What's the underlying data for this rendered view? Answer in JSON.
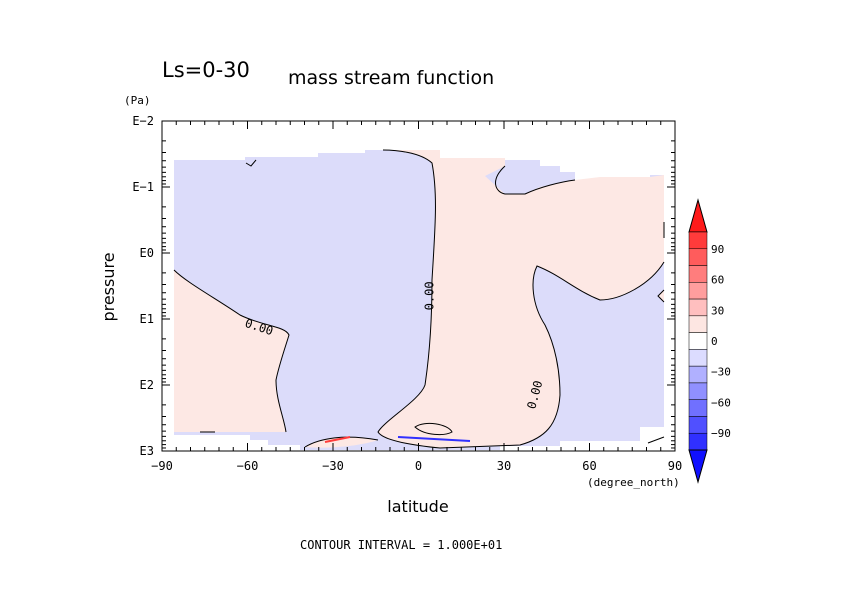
{
  "chart_data": {
    "type": "heatmap",
    "title": "Ls=0-30",
    "subtitle": "mass stream function",
    "xlabel": "latitude",
    "xunit": "(degree_north)",
    "ylabel": "pressure",
    "yunit": "(Pa)",
    "x_ticks": [
      "−90",
      "−60",
      "−30",
      "0",
      "30",
      "60",
      "90"
    ],
    "x_tick_values": [
      -90,
      -60,
      -30,
      0,
      30,
      60,
      90
    ],
    "y_ticks": [
      "E−2",
      "E−1",
      "E0",
      "E1",
      "E2",
      "E3"
    ],
    "y_tick_exponents": [
      -2,
      -1,
      0,
      1,
      2,
      3
    ],
    "xlim": [
      -90,
      90
    ],
    "ylim_log10_pa": [
      -2,
      3
    ],
    "y_scale": "log",
    "y_inverted": true,
    "contour_labels": [
      {
        "text": "0.00",
        "lat": -56,
        "log10_p": 1.13
      },
      {
        "text": "0.00",
        "lat": 4,
        "log10_p": 0.65
      },
      {
        "text": "0.00",
        "lat": 41,
        "log10_p": 2.15
      }
    ],
    "colorbar": {
      "labels": [
        "90",
        "60",
        "30",
        "0",
        "−30",
        "−60",
        "−90"
      ],
      "levels": [
        90,
        60,
        30,
        0,
        -30,
        -60,
        -90
      ],
      "colors": [
        "#ff1a1a",
        "#ff3b3b",
        "#ff5c5c",
        "#ff7d7d",
        "#ff9e9e",
        "#ffbfbf",
        "#fde6e2",
        "#ffffff",
        "#dcdcff",
        "#b0b0ff",
        "#9090ff",
        "#7070ff",
        "#5050ff",
        "#3030ff",
        "#1010ff"
      ],
      "positive_color": "#fde8e4",
      "negative_color": "#dcdcfa"
    },
    "footer": "CONTOUR INTERVAL = 1.000E+01"
  }
}
